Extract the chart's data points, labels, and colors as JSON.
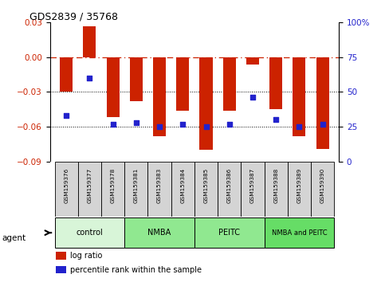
{
  "title": "GDS2839 / 35768",
  "samples": [
    "GSM159376",
    "GSM159377",
    "GSM159378",
    "GSM159381",
    "GSM159383",
    "GSM159384",
    "GSM159385",
    "GSM159386",
    "GSM159387",
    "GSM159388",
    "GSM159389",
    "GSM159390"
  ],
  "log_ratios": [
    -0.03,
    0.027,
    -0.052,
    -0.038,
    -0.068,
    -0.046,
    -0.08,
    -0.046,
    -0.006,
    -0.045,
    -0.068,
    -0.079
  ],
  "percentile_ranks": [
    33,
    60,
    27,
    28,
    25,
    27,
    25,
    27,
    46,
    30,
    25,
    27
  ],
  "groups": [
    {
      "label": "control",
      "start": 0,
      "end": 3,
      "color": "#d8f5d8"
    },
    {
      "label": "NMBA",
      "start": 3,
      "end": 6,
      "color": "#90e890"
    },
    {
      "label": "PEITC",
      "start": 6,
      "end": 9,
      "color": "#90e890"
    },
    {
      "label": "NMBA and PEITC",
      "start": 9,
      "end": 12,
      "color": "#66dd66"
    }
  ],
  "bar_color": "#cc2200",
  "dot_color": "#2222cc",
  "ylim_left": [
    -0.09,
    0.03
  ],
  "ylim_right": [
    0,
    100
  ],
  "yticks_left": [
    0.03,
    0.0,
    -0.03,
    -0.06,
    -0.09
  ],
  "yticks_right": [
    100,
    75,
    50,
    25,
    0
  ],
  "plot_bg": "#ffffff",
  "agent_label": "agent",
  "legend_items": [
    {
      "color": "#cc2200",
      "label": "log ratio"
    },
    {
      "color": "#2222cc",
      "label": "percentile rank within the sample"
    }
  ]
}
